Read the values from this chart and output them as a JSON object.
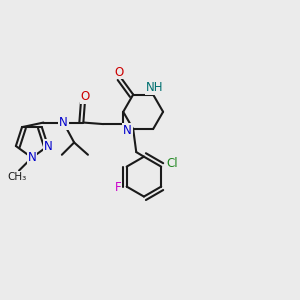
{
  "bg_color": "#ebebeb",
  "atom_colors": {
    "N": "#0000cc",
    "O": "#cc0000",
    "H": "#007070",
    "Cl": "#228822",
    "F": "#cc00cc"
  },
  "bond_color": "#1a1a1a",
  "bond_width": 1.5,
  "font_size": 8.5
}
